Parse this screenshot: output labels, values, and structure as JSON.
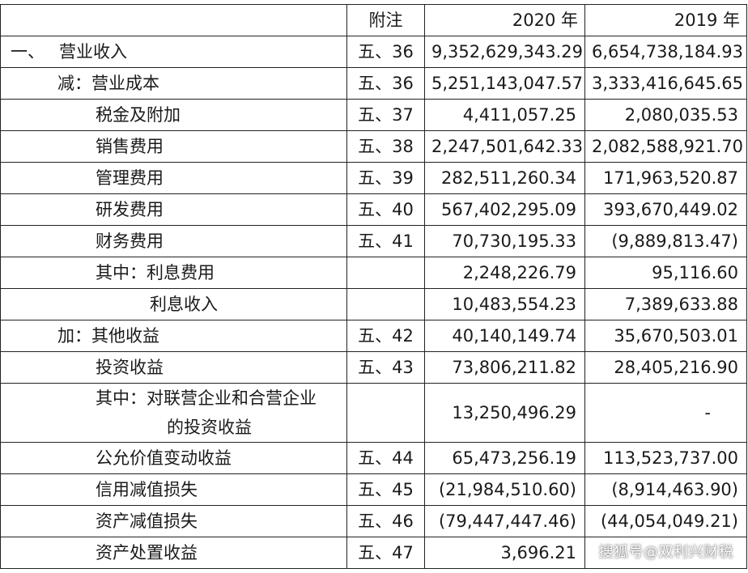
{
  "header": {
    "item": "",
    "note": "附注",
    "y2020": "2020 年",
    "y2019": "2019 年"
  },
  "rows": [
    {
      "prefix": "一、",
      "label": "营业收入",
      "note": "五、36",
      "y2020": "9,352,629,343.29",
      "y2019": "6,654,738,184.93"
    },
    {
      "label": "减：营业成本",
      "note": "五、36",
      "y2020": "5,251,143,047.57",
      "y2019": "3,333,416,645.65"
    },
    {
      "label": "税金及附加",
      "note": "五、37",
      "y2020": "4,411,057.25",
      "y2019": "2,080,035.53"
    },
    {
      "label": "销售费用",
      "note": "五、38",
      "y2020": "2,247,501,642.33",
      "y2019": "2,082,588,921.70"
    },
    {
      "label": "管理费用",
      "note": "五、39",
      "y2020": "282,511,260.34",
      "y2019": "171,963,520.87"
    },
    {
      "label": "研发费用",
      "note": "五、40",
      "y2020": "567,402,295.09",
      "y2019": "393,670,449.02"
    },
    {
      "label": "财务费用",
      "note": "五、41",
      "y2020": "70,730,195.33",
      "y2019": "(9,889,813.47)"
    },
    {
      "label": "其中：利息费用",
      "note": "",
      "y2020": "2,248,226.79",
      "y2019": "95,116.60"
    },
    {
      "label": "利息收入",
      "note": "",
      "y2020": "10,483,554.23",
      "y2019": "7,389,633.88"
    },
    {
      "label": "加：其他收益",
      "note": "五、42",
      "y2020": "40,140,149.74",
      "y2019": "35,670,503.01"
    },
    {
      "label": "投资收益",
      "note": "五、43",
      "y2020": "73,806,211.82",
      "y2019": "28,405,216.90"
    },
    {
      "label_line1": "其中：对联营企业和合营企业",
      "label_line2": "的投资收益",
      "note": "",
      "y2020": "13,250,496.29",
      "y2019": "-"
    },
    {
      "label": "公允价值变动收益",
      "note": "五、44",
      "y2020": "65,473,256.19",
      "y2019": "113,523,737.00"
    },
    {
      "label": "信用减值损失",
      "note": "五、45",
      "y2020": "(21,984,510.60)",
      "y2019": "(8,914,463.90)"
    },
    {
      "label": "资产减值损失",
      "note": "五、46",
      "y2020": "(79,447,447.46)",
      "y2019": "(44,054,049.21)"
    },
    {
      "label": "资产处置收益",
      "note": "五、47",
      "y2020": "3,696.21",
      "y2019": ""
    }
  ],
  "watermark": "搜狐号@双利兴财税"
}
